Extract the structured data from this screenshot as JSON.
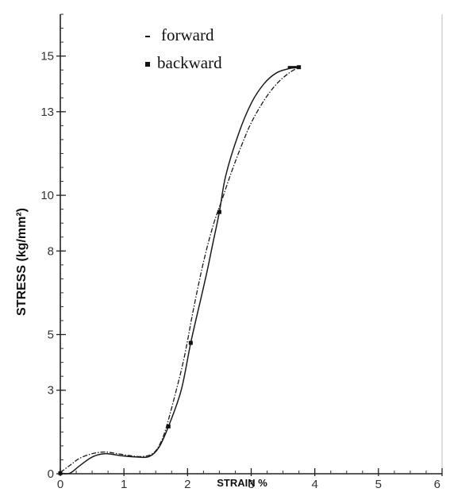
{
  "chart_data": {
    "type": "line",
    "xlabel": "STRAIN %",
    "ylabel": "STRESS (kg/mm²)",
    "xlim": [
      0,
      6
    ],
    "ylim": [
      0,
      16.5
    ],
    "x_ticks": [
      0,
      1,
      2,
      3,
      4,
      5,
      6
    ],
    "x_tick_labels": [
      "0",
      "1",
      "2",
      "3",
      "4",
      "5",
      "6"
    ],
    "y_ticks": [
      0,
      3,
      5,
      8,
      10,
      13,
      15
    ],
    "y_tick_labels": [
      "0",
      "3",
      "5",
      "8",
      "10",
      "13",
      "15"
    ],
    "y_minor_step": 0.5,
    "x_minor_step": 0.25,
    "legend": {
      "position": "top-center",
      "entries": [
        {
          "marker": "dash",
          "label": "forward"
        },
        {
          "marker": "square",
          "label": "backward"
        }
      ]
    },
    "series": [
      {
        "name": "forward",
        "style": "dashed",
        "x": [
          0,
          0.15,
          0.3,
          0.5,
          0.7,
          0.9,
          1.1,
          1.3,
          1.45,
          1.55,
          1.65,
          1.8,
          1.95,
          2.1,
          2.25,
          2.4,
          2.55,
          2.7,
          2.85,
          3.0,
          3.2,
          3.4,
          3.6,
          3.75
        ],
        "y": [
          0.05,
          0.3,
          0.55,
          0.72,
          0.78,
          0.72,
          0.65,
          0.62,
          0.72,
          1.0,
          1.55,
          2.8,
          4.2,
          6.0,
          7.6,
          8.9,
          9.9,
          10.9,
          11.8,
          12.6,
          13.4,
          14.0,
          14.4,
          14.6
        ]
      },
      {
        "name": "backward",
        "style": "solid",
        "x": [
          3.75,
          3.6,
          3.4,
          3.2,
          3.0,
          2.8,
          2.6,
          2.5,
          2.4,
          2.3,
          2.2,
          2.05,
          1.9,
          1.7,
          1.55,
          1.4,
          1.2,
          0.95,
          0.7,
          0.5,
          0.3,
          0.15,
          0
        ],
        "y": [
          14.6,
          14.55,
          14.4,
          14.0,
          13.3,
          12.2,
          10.7,
          9.4,
          8.3,
          7.2,
          6.2,
          4.7,
          3.0,
          1.7,
          0.95,
          0.62,
          0.6,
          0.65,
          0.72,
          0.6,
          0.28,
          0.02,
          0.02
        ],
        "markers": [
          {
            "x": 0,
            "y": 0.02
          },
          {
            "x": 1.7,
            "y": 1.7
          },
          {
            "x": 2.05,
            "y": 4.7
          },
          {
            "x": 2.5,
            "y": 9.4
          },
          {
            "x": 3.75,
            "y": 14.6
          }
        ]
      }
    ]
  }
}
